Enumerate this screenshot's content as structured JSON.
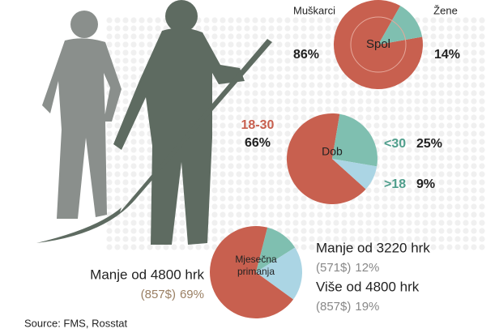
{
  "chart_data": [
    {
      "type": "pie",
      "title": "Spol",
      "categories": [
        "Muškarci",
        "Žene"
      ],
      "values": [
        86,
        14
      ],
      "value_labels": [
        "86%",
        "14%"
      ],
      "colors": [
        "#c8604f",
        "#7fbfb0"
      ]
    },
    {
      "type": "pie",
      "title": "Dob",
      "categories": [
        "18-30",
        "<30",
        ">18"
      ],
      "values": [
        66,
        25,
        9
      ],
      "value_labels": [
        "66%",
        "25%",
        "9%"
      ],
      "colors": [
        "#c8604f",
        "#7fbfb0",
        "#abd5e4"
      ]
    },
    {
      "type": "pie",
      "title": "Mjesečna primanja",
      "categories": [
        "Manje od 4800 hrk",
        "Manje od 3220 hrk",
        "Više od 4800 hrk"
      ],
      "sublabels": [
        "(857$)",
        "(571$)",
        "(857$)"
      ],
      "values": [
        69,
        12,
        19
      ],
      "value_labels": [
        "69%",
        "12%",
        "19%"
      ],
      "colors": [
        "#c8604f",
        "#7fbfb0",
        "#abd5e4"
      ]
    }
  ],
  "source": "Source: FMS, Rosstat"
}
